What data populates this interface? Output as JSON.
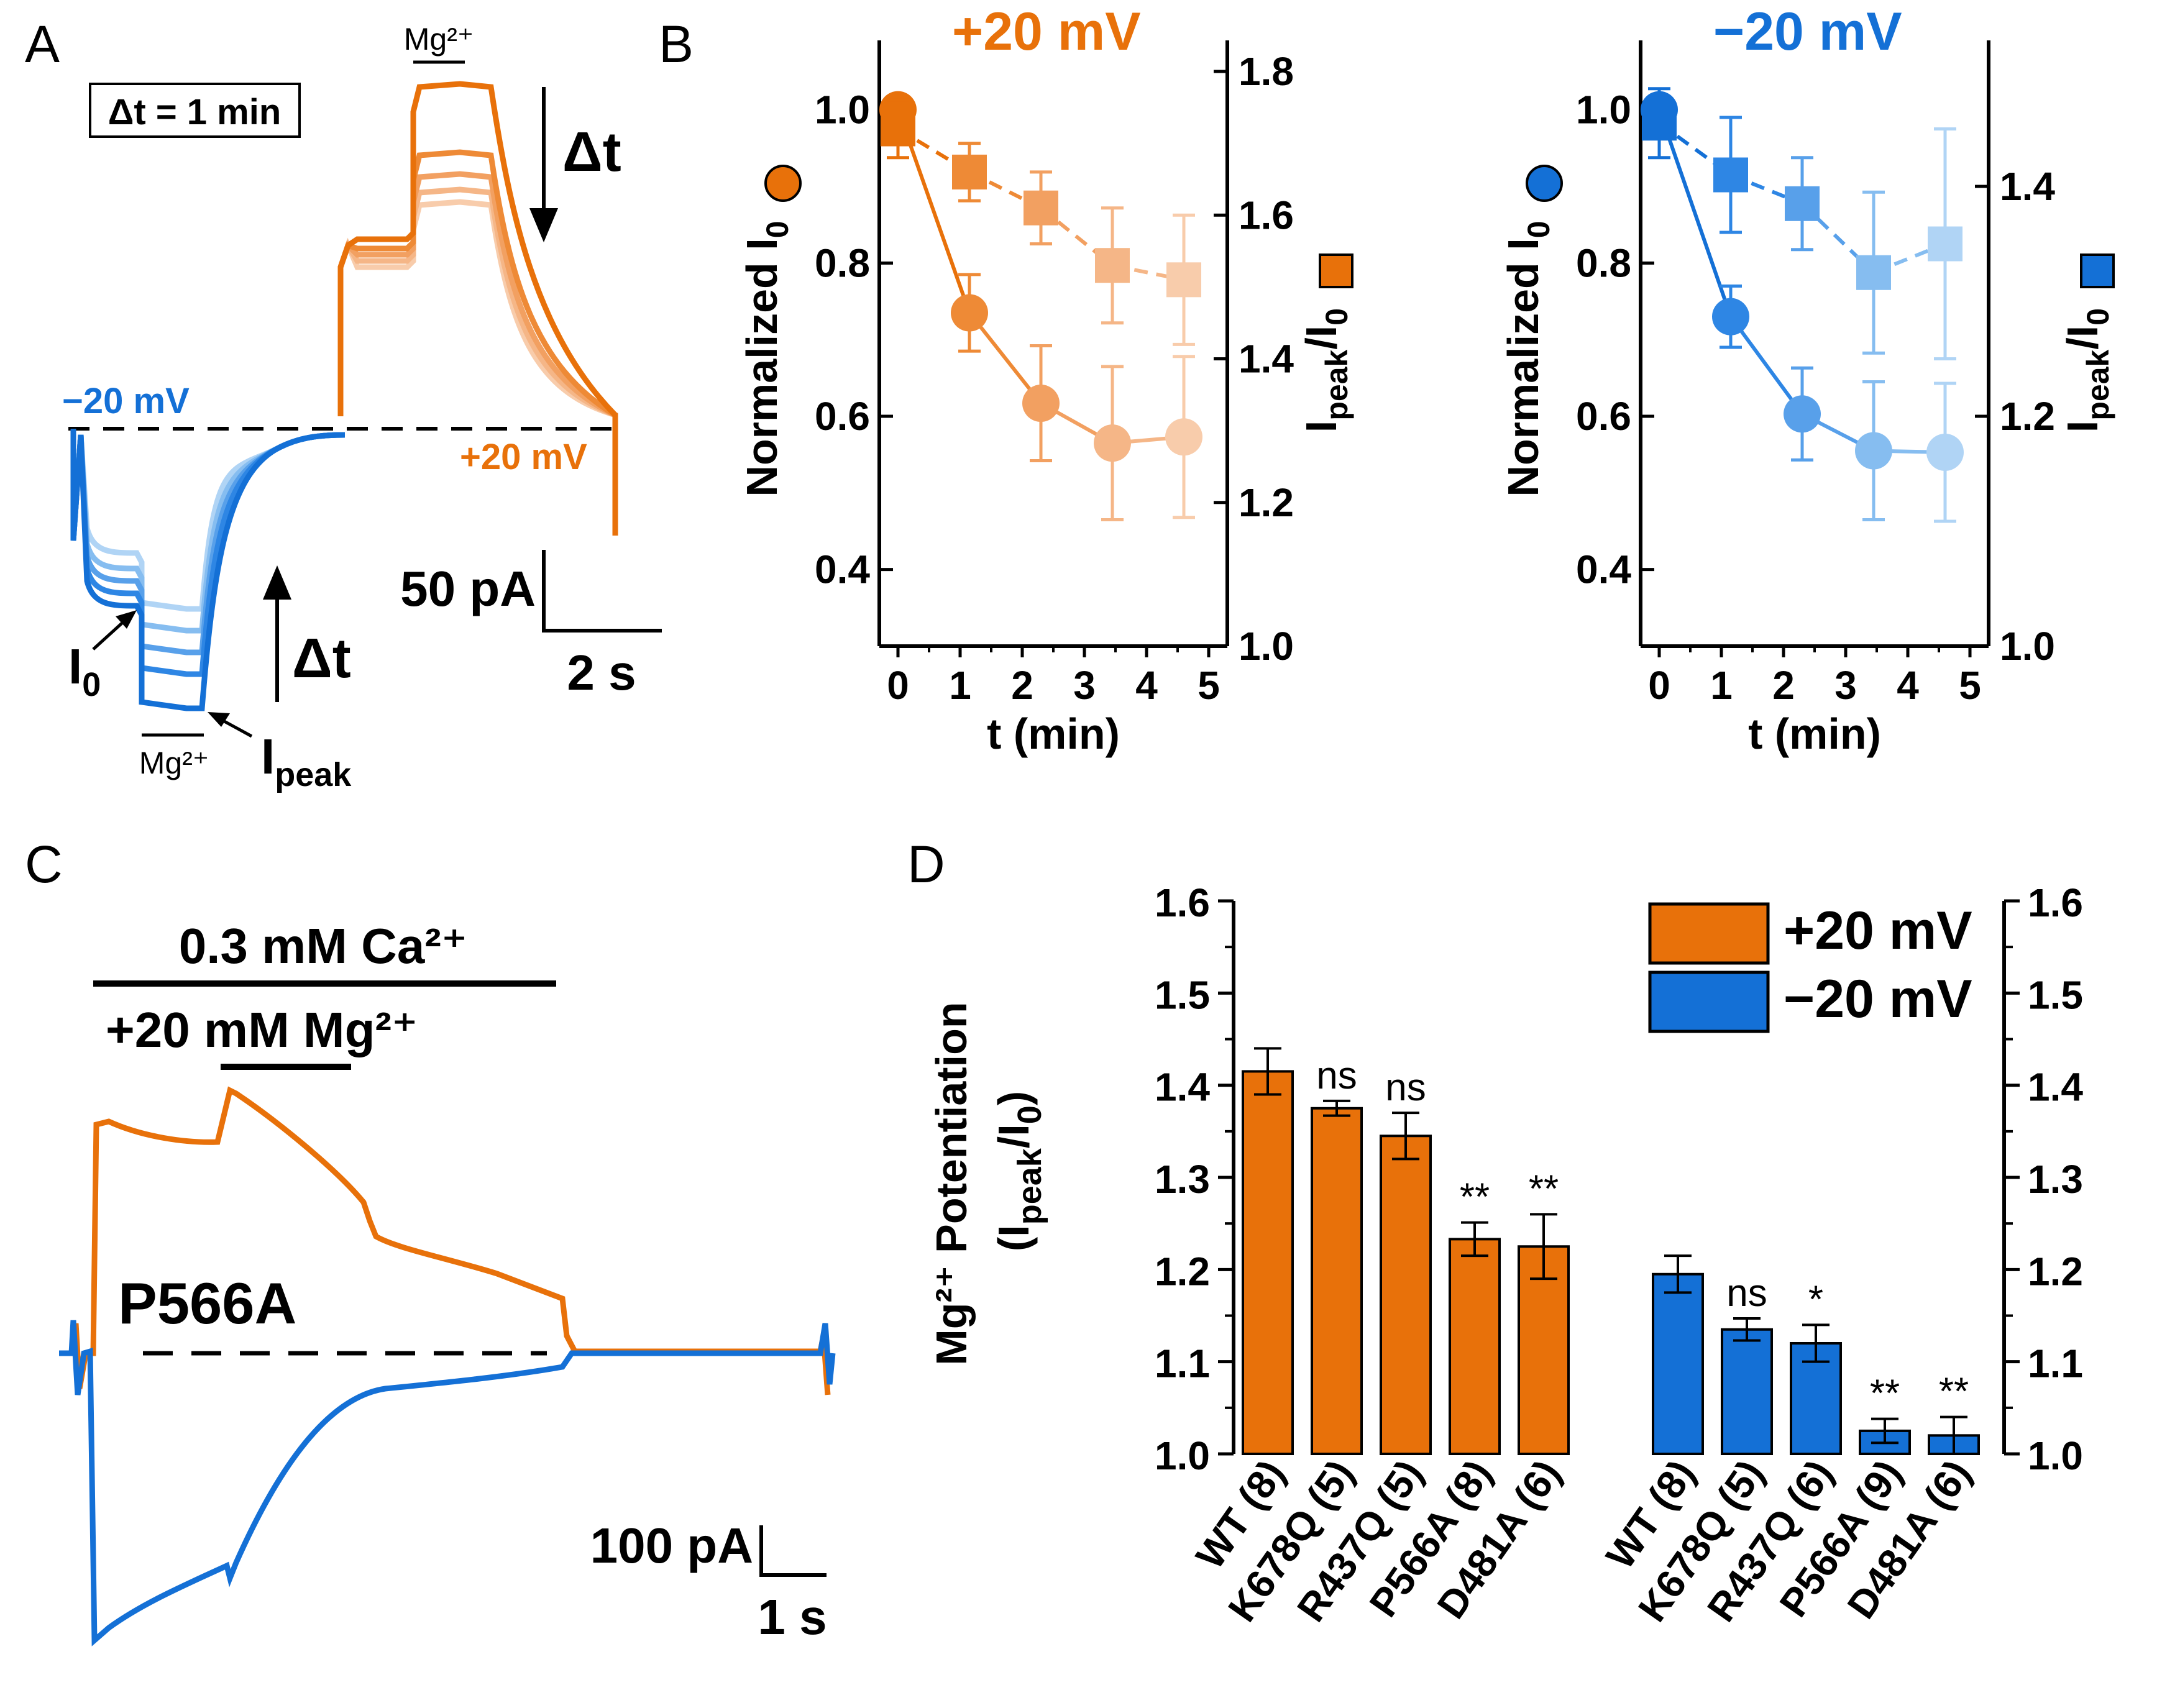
{
  "panels": {
    "A": "A",
    "B": "B",
    "C": "C",
    "D": "D"
  },
  "colors": {
    "orange": "#E8710A",
    "blue": "#1470D6",
    "orange_shades": [
      "#E8710A",
      "#EE8A36",
      "#F2A061",
      "#F5B687",
      "#F8CCAB"
    ],
    "blue_shades": [
      "#1470D6",
      "#2E86E4",
      "#58A0EA",
      "#86BDF0",
      "#B0D4F5"
    ]
  },
  "panelA": {
    "dt_box": "Δt = 1 min",
    "mg_label_top": "Mg²⁺",
    "mg_label_bottom": "Mg²⁺",
    "dt_arrow_top": "Δt",
    "dt_arrow_bottom": "Δt",
    "v_neg": "−20 mV",
    "v_pos": "+20 mV",
    "i0_label": "I",
    "i0_sub": "0",
    "ipeak_label": "I",
    "ipeak_sub": "peak",
    "scale_y": "50 pA",
    "scale_x": "2 s"
  },
  "panelC": {
    "ca_label": "0.3 mM Ca²⁺",
    "mg_label": "+20 mM Mg²⁺",
    "mutant": "P566A",
    "scale_y": "100 pA",
    "scale_x": "1 s"
  },
  "chart_data": [
    {
      "id": "B-left",
      "type": "line",
      "title": "+20 mV",
      "xlabel": "t (min)",
      "ylabel": "Normalized I0",
      "y2label": "Ipeak/I0",
      "xlim": [
        -0.3,
        5.3
      ],
      "ylim": [
        0.3,
        1.05
      ],
      "y2lim": [
        1.0,
        1.8
      ],
      "xticks": [
        "0",
        "1",
        "2",
        "3",
        "4",
        "5"
      ],
      "yticks": [
        "0.4",
        "0.6",
        "0.8",
        "1.0"
      ],
      "y2ticks": [
        "1.0",
        "1.2",
        "1.4",
        "1.6",
        "1.8"
      ],
      "series": [
        {
          "name": "Normalized I0",
          "marker": "circle",
          "axis": "left",
          "x": [
            0,
            1.15,
            2.3,
            3.45,
            4.6
          ],
          "y": [
            1.0,
            0.735,
            0.617,
            0.565,
            0.573
          ],
          "err": [
            0.005,
            0.05,
            0.075,
            0.1,
            0.105
          ]
        },
        {
          "name": "Ipeak/I0",
          "marker": "square",
          "axis": "right",
          "x": [
            0,
            1.15,
            2.3,
            3.45,
            4.6
          ],
          "y": [
            1.72,
            1.66,
            1.61,
            1.53,
            1.51
          ],
          "err": [
            0.04,
            0.04,
            0.05,
            0.08,
            0.09
          ]
        }
      ]
    },
    {
      "id": "B-right",
      "type": "line",
      "title": "−20 mV",
      "xlabel": "t (min)",
      "ylabel": "Normalized I0",
      "y2label": "Ipeak/I0",
      "xlim": [
        -0.3,
        5.3
      ],
      "ylim": [
        0.3,
        1.05
      ],
      "y2lim": [
        1.0,
        1.5
      ],
      "xticks": [
        "0",
        "1",
        "2",
        "3",
        "4",
        "5"
      ],
      "yticks": [
        "0.4",
        "0.6",
        "0.8",
        "1.0"
      ],
      "y2ticks": [
        "1.0",
        "1.2",
        "1.4"
      ],
      "series": [
        {
          "name": "Normalized I0",
          "marker": "circle",
          "axis": "left",
          "x": [
            0,
            1.15,
            2.3,
            3.45,
            4.6
          ],
          "y": [
            1.0,
            0.73,
            0.603,
            0.555,
            0.553
          ],
          "err": [
            0.015,
            0.04,
            0.06,
            0.09,
            0.09
          ]
        },
        {
          "name": "Ipeak/I0",
          "marker": "square",
          "axis": "right",
          "x": [
            0,
            1.15,
            2.3,
            3.45,
            4.6
          ],
          "y": [
            1.455,
            1.41,
            1.385,
            1.325,
            1.35
          ],
          "err": [
            0.03,
            0.05,
            0.04,
            0.07,
            0.1
          ]
        }
      ]
    },
    {
      "id": "D",
      "type": "bar",
      "ylabel_main": "Mg²⁺ Potentiation",
      "ylabel_sub": "(Ipeak/I0)",
      "ylim": [
        1.0,
        1.6
      ],
      "yticks": [
        "1.0",
        "1.1",
        "1.2",
        "1.3",
        "1.4",
        "1.5",
        "1.6"
      ],
      "legend": [
        {
          "name": "+20 mV"
        },
        {
          "name": "−20 mV"
        }
      ],
      "legend_position": "top-right",
      "groups": [
        {
          "name": "+20 mV",
          "categories": [
            "WT (8)",
            "K678Q (5)",
            "R437Q (5)",
            "P566A (8)",
            "D481A (6)"
          ],
          "values": [
            1.415,
            1.375,
            1.345,
            1.233,
            1.225
          ],
          "err": [
            0.025,
            0.008,
            0.025,
            0.018,
            0.035
          ],
          "sig": [
            "",
            "ns",
            "ns",
            "**",
            "**"
          ]
        },
        {
          "name": "−20 mV",
          "categories": [
            "WT (8)",
            "K678Q (5)",
            "R437Q (6)",
            "P566A (9)",
            "D481A (6)"
          ],
          "values": [
            1.195,
            1.135,
            1.12,
            1.025,
            1.02
          ],
          "err": [
            0.02,
            0.012,
            0.02,
            0.013,
            0.02
          ],
          "sig": [
            "",
            "ns",
            "*",
            "**",
            "**"
          ]
        }
      ]
    }
  ]
}
